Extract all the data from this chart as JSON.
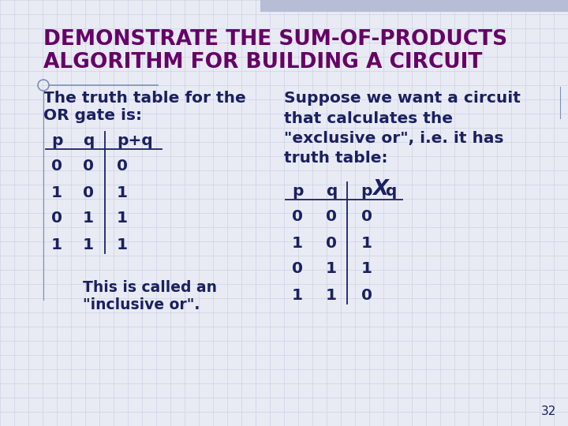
{
  "title_line1": "DEMONSTRATE THE SUM-OF-PRODUCTS",
  "title_line2": "ALGORITHM FOR BUILDING A CIRCUIT",
  "title_color": "#660066",
  "title_fontsize": 19,
  "bg_color": "#E8EBF4",
  "title_bg_color": "#C8CDE0",
  "body_color": "#1A2060",
  "body_fontsize": 14.5,
  "small_fontsize": 13.5,
  "table1_header": [
    "p",
    "q",
    "p+q"
  ],
  "table1_rows": [
    [
      "0",
      "0",
      "0"
    ],
    [
      "1",
      "0",
      "1"
    ],
    [
      "0",
      "1",
      "1"
    ],
    [
      "1",
      "1",
      "1"
    ]
  ],
  "table2_header_parts": [
    "p",
    "q",
    "p",
    "X",
    "q"
  ],
  "table2_rows": [
    [
      "0",
      "0",
      "0"
    ],
    [
      "1",
      "0",
      "1"
    ],
    [
      "0",
      "1",
      "1"
    ],
    [
      "1",
      "1",
      "0"
    ]
  ],
  "text_left_line1": "The truth table for the",
  "text_left_line2": "OR gate is:",
  "text_right_line1": "Suppose we want a circuit",
  "text_right_line2": "that calculates the",
  "text_right_line3": "\"exclusive or\", i.e. it has",
  "text_right_line4": "truth table:",
  "text_bottom_line1": "This is called an",
  "text_bottom_line2": "\"inclusive or\".",
  "page_number": "32",
  "grid_color": "#C8CCE0",
  "line_color": "#8090B0"
}
